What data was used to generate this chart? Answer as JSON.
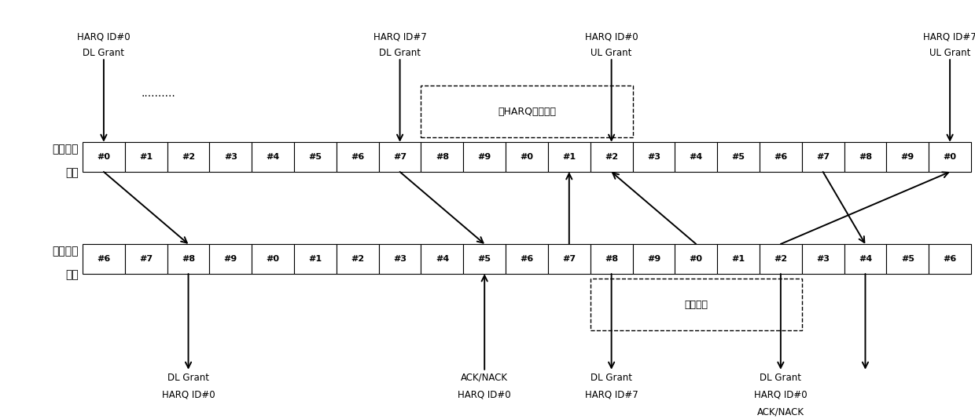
{
  "bb_labels": [
    "#0",
    "#1",
    "#2",
    "#3",
    "#4",
    "#5",
    "#6",
    "#7",
    "#8",
    "#9",
    "#0",
    "#1",
    "#2",
    "#3",
    "#4",
    "#5",
    "#6",
    "#7",
    "#8",
    "#9",
    "#0"
  ],
  "rf_labels": [
    "#6",
    "#7",
    "#8",
    "#9",
    "#0",
    "#1",
    "#2",
    "#3",
    "#4",
    "#5",
    "#6",
    "#7",
    "#8",
    "#9",
    "#0",
    "#1",
    "#2",
    "#3",
    "#4",
    "#5",
    "#6"
  ],
  "n_cells": 21,
  "bg_color": "#ffffff",
  "text_color": "#000000",
  "bb_row_label_line1": "基带处理",
  "bb_row_label_line2": "设备",
  "rf_row_label_line1": "射频处理",
  "rf_row_label_line2": "设备",
  "no_harq_label": "无HARQ进程可用",
  "resource_idle_label": "资源空闲"
}
